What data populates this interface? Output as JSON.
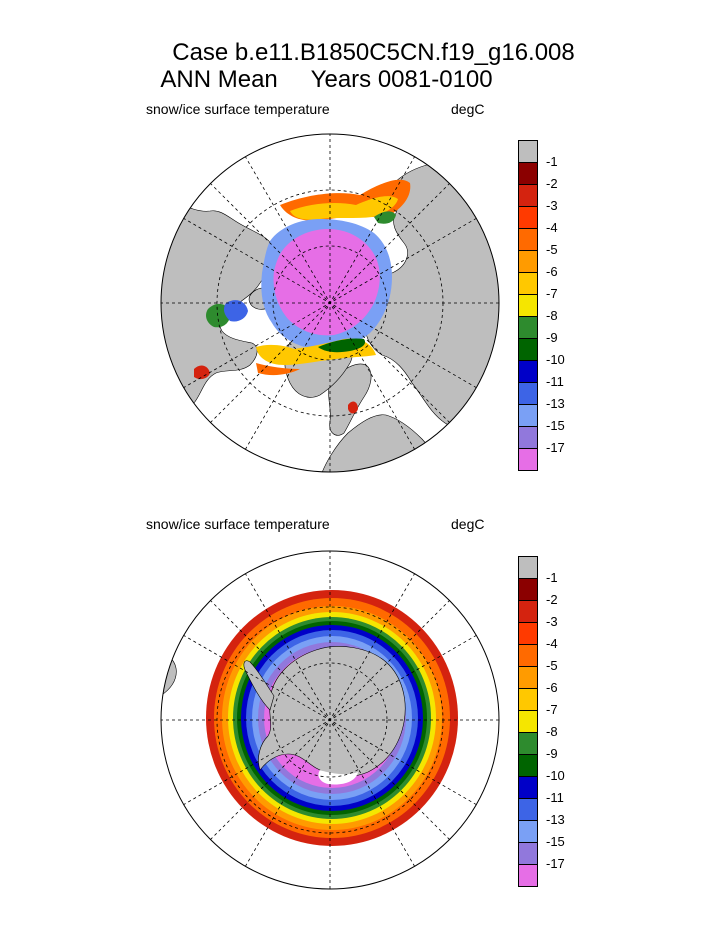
{
  "title_line1": "Case b.e11.B1850C5CN.f19_g16.008",
  "title_line2": "ANN Mean     Years 0081-0100",
  "panels": [
    {
      "id": "north",
      "left_label": "snow/ice surface temperature",
      "right_label": "degC"
    },
    {
      "id": "south",
      "left_label": "snow/ice surface temperature",
      "right_label": "degC"
    }
  ],
  "colorbar": {
    "labels": [
      "-1",
      "-2",
      "-3",
      "-4",
      "-5",
      "-6",
      "-7",
      "-8",
      "-9",
      "-10",
      "-11",
      "-13",
      "-15",
      "-17"
    ],
    "colors": [
      "#bebebe",
      "#8b0000",
      "#d4230f",
      "#ff3a00",
      "#ff6a00",
      "#ff9b00",
      "#ffc800",
      "#f5e600",
      "#2e8b2e",
      "#006400",
      "#0000c8",
      "#3d64e6",
      "#7aa0f5",
      "#9178dc",
      "#e66ee6"
    ]
  },
  "colors": {
    "land": "#bebebe",
    "ocean": "#ffffff",
    "ice_core": "#e66ee6"
  }
}
